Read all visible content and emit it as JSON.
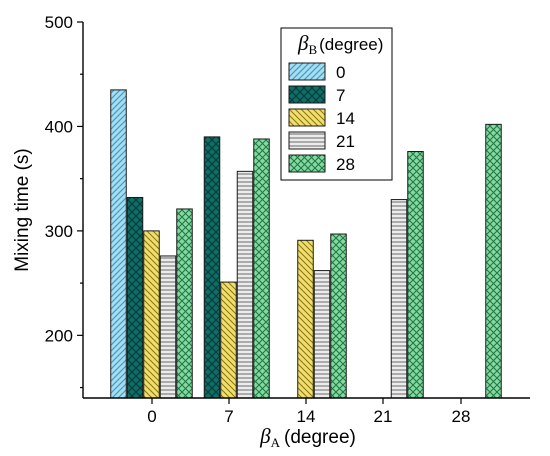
{
  "chart_data": {
    "type": "bar",
    "xlabel": {
      "symbol": "β",
      "subscript": "A",
      "unit": "(degree)"
    },
    "ylabel": "Mixing time (s)",
    "categories": [
      "0",
      "7",
      "14",
      "21",
      "28"
    ],
    "ylim": [
      140,
      500
    ],
    "yticks": [
      200,
      300,
      400,
      500
    ],
    "grid": false,
    "legend": {
      "title_symbol": "β",
      "title_subscript": "B",
      "title_unit": "(degree)",
      "placement": "top-center"
    },
    "series": [
      {
        "name": "0",
        "values": [
          435,
          null,
          null,
          null,
          null
        ],
        "fill": "#a9dcef",
        "hatch": "diag-right",
        "hatch_color": "#3aa0c8"
      },
      {
        "name": "7",
        "values": [
          332,
          390,
          null,
          null,
          null
        ],
        "fill": "#0e6e68",
        "hatch": "crosshatch",
        "hatch_color": "#063e3a"
      },
      {
        "name": "14",
        "values": [
          300,
          251,
          291,
          null,
          null
        ],
        "fill": "#f1de6e",
        "hatch": "diag-left",
        "hatch_color": "#8a7a12"
      },
      {
        "name": "21",
        "values": [
          276,
          357,
          262,
          330,
          null
        ],
        "fill": "#e6e6e6",
        "hatch": "horizontal",
        "hatch_color": "#6a6a6a"
      },
      {
        "name": "28",
        "values": [
          321,
          388,
          297,
          376,
          402
        ],
        "fill": "#7fd49a",
        "hatch": "crosshatch",
        "hatch_color": "#1f7a45"
      }
    ]
  }
}
